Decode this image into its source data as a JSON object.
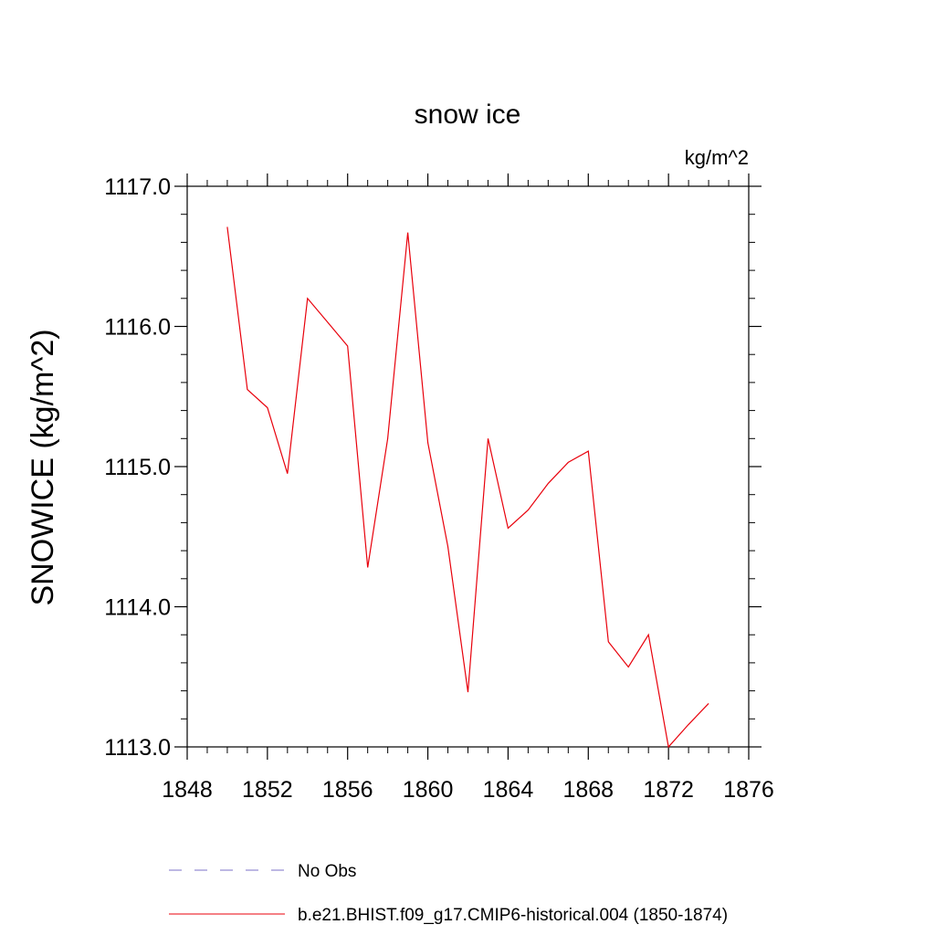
{
  "chart_data": {
    "type": "line",
    "title": "snow ice",
    "units_label": "kg/m^2",
    "xlabel": "",
    "ylabel": "SNOWICE  (kg/m^2)",
    "xlim": [
      1848,
      1876
    ],
    "ylim": [
      1113.0,
      1117.0
    ],
    "xticks": [
      "1848",
      "1852",
      "1856",
      "1860",
      "1864",
      "1868",
      "1872",
      "1876"
    ],
    "yticks": [
      "1113.0",
      "1114.0",
      "1115.0",
      "1116.0",
      "1117.0"
    ],
    "grid": false,
    "legend_position": "bottom",
    "series": [
      {
        "name": "b.e21.BHIST.f09_g17.CMIP6-historical.004 (1850-1874)",
        "color": "#e8000b",
        "style": "solid",
        "x": [
          1850,
          1851,
          1852,
          1853,
          1854,
          1855,
          1856,
          1857,
          1858,
          1859,
          1860,
          1861,
          1862,
          1863,
          1864,
          1865,
          1866,
          1867,
          1868,
          1869,
          1870,
          1871,
          1872,
          1873,
          1874
        ],
        "y": [
          1116.71,
          1115.55,
          1115.42,
          1114.95,
          1116.2,
          1116.03,
          1115.86,
          1114.28,
          1115.2,
          1116.67,
          1115.17,
          1114.43,
          1113.39,
          1115.2,
          1114.56,
          1114.69,
          1114.88,
          1115.03,
          1115.11,
          1113.75,
          1113.57,
          1113.8,
          1113.0,
          1113.16,
          1113.31
        ]
      },
      {
        "name": "No Obs",
        "color": "#7b72c8",
        "style": "dashed",
        "x": [],
        "y": []
      }
    ]
  }
}
